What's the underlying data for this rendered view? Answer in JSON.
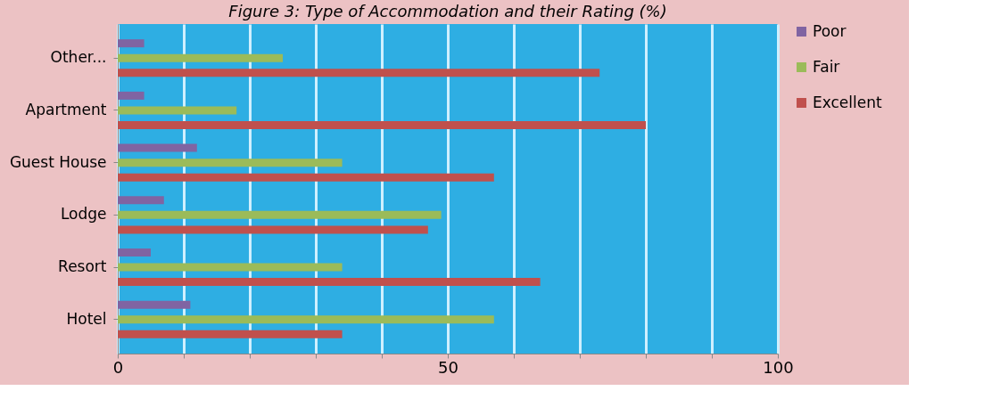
{
  "chart_data": {
    "type": "bar",
    "orientation": "horizontal",
    "title": "Figure 3: Type of Accommodation and their Rating (%)",
    "categories": [
      "Other...",
      "Apartment",
      "Guest House",
      "Lodge",
      "Resort",
      "Hotel"
    ],
    "series": [
      {
        "name": "Poor",
        "color": "#8064a2",
        "values": [
          4,
          4,
          12,
          7,
          5,
          11
        ]
      },
      {
        "name": "Fair",
        "color": "#9bbb59",
        "values": [
          25,
          18,
          34,
          49,
          34,
          57
        ]
      },
      {
        "name": "Excellent",
        "color": "#c0504d",
        "values": [
          73,
          80,
          57,
          47,
          64,
          34
        ]
      }
    ],
    "xlim": [
      0,
      100
    ],
    "xticks": [
      0,
      {
        "value": 10,
        "label": null
      },
      {
        "value": 20,
        "label": null
      },
      {
        "value": 30,
        "label": null
      },
      {
        "value": 40,
        "label": null
      },
      50,
      {
        "value": 60,
        "label": null
      },
      {
        "value": 70,
        "label": null
      },
      {
        "value": 80,
        "label": null
      },
      {
        "value": 90,
        "label": null
      },
      100
    ],
    "grid": "x",
    "legend": "right"
  }
}
